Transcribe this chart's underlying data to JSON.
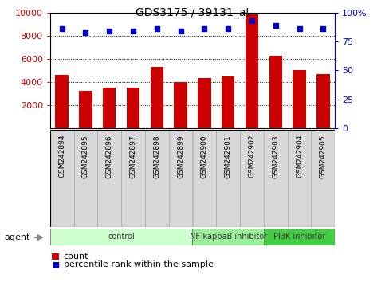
{
  "title": "GDS3175 / 39131_at",
  "samples": [
    "GSM242894",
    "GSM242895",
    "GSM242896",
    "GSM242897",
    "GSM242898",
    "GSM242899",
    "GSM242900",
    "GSM242901",
    "GSM242902",
    "GSM242903",
    "GSM242904",
    "GSM242905"
  ],
  "counts": [
    4600,
    3250,
    3550,
    3500,
    5300,
    4000,
    4350,
    4500,
    9850,
    6250,
    5000,
    4700
  ],
  "percentiles": [
    86,
    83,
    84,
    84,
    86,
    84,
    86,
    86,
    93,
    89,
    86,
    86
  ],
  "bar_color": "#cc0000",
  "dot_color": "#0000cc",
  "ylim_left": [
    0,
    10000
  ],
  "ylim_right": [
    0,
    100
  ],
  "yticks_left": [
    2000,
    4000,
    6000,
    8000,
    10000
  ],
  "ytick_labels_right": [
    "0",
    "25",
    "50",
    "75",
    "100%"
  ],
  "yticks_right": [
    0,
    25,
    50,
    75,
    100
  ],
  "groups": [
    {
      "label": "control",
      "start": 0,
      "end": 6,
      "color": "#ccffcc"
    },
    {
      "label": "NF-kappaB inhibitor",
      "start": 6,
      "end": 9,
      "color": "#99ee99"
    },
    {
      "label": "PI3K inhibitor",
      "start": 9,
      "end": 12,
      "color": "#44cc44"
    }
  ],
  "agent_label": "agent",
  "legend_count_label": "count",
  "legend_pct_label": "percentile rank within the sample",
  "bg_color": "#ffffff",
  "plot_bg_color": "#ffffff",
  "sample_box_color": "#d8d8d8",
  "grid_color": "#000000",
  "tick_label_color_left": "#cc0000",
  "tick_label_color_right": "#0000cc"
}
